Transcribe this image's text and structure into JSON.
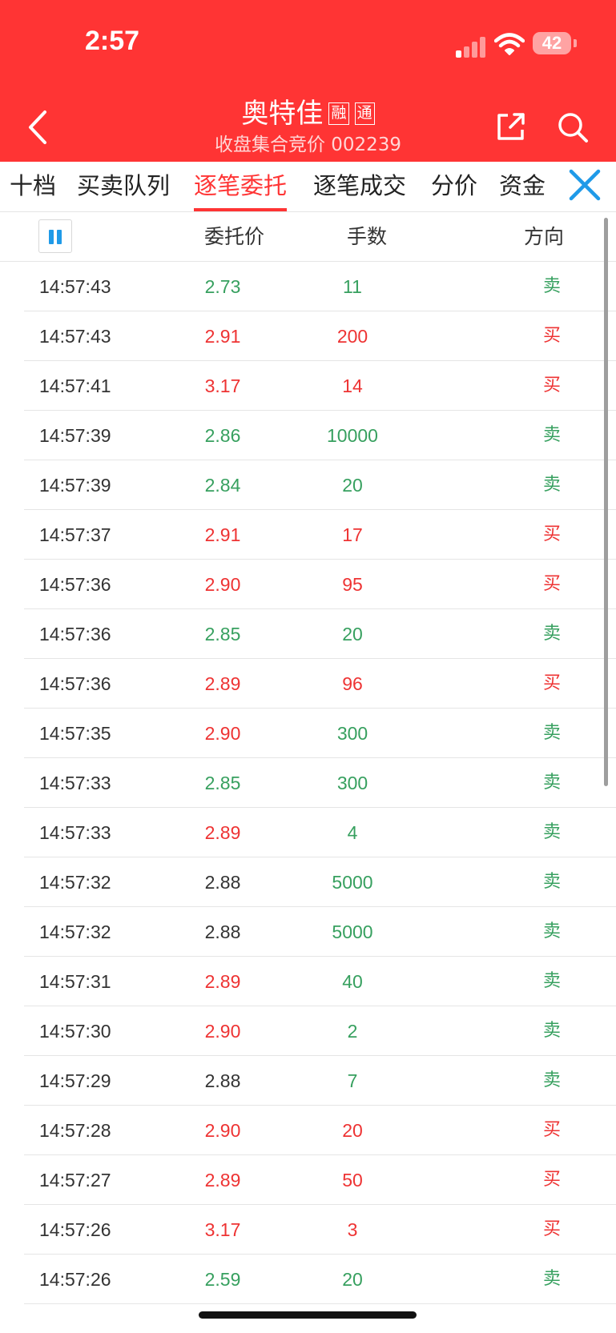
{
  "status_bar": {
    "time": "2:57",
    "battery": "42"
  },
  "header": {
    "title": "奥特佳",
    "tags": [
      "融",
      "通"
    ],
    "subtitle": "收盘集合竞价 002239"
  },
  "tabs": [
    {
      "label": "十档",
      "active": false
    },
    {
      "label": "买卖队列",
      "active": false
    },
    {
      "label": "逐笔委托",
      "active": true
    },
    {
      "label": "逐笔成交",
      "active": false
    },
    {
      "label": "分价",
      "active": false
    },
    {
      "label": "资金",
      "active": false
    }
  ],
  "columns": {
    "price": "委托价",
    "volume": "手数",
    "direction": "方向"
  },
  "colors": {
    "red": "#ee3333",
    "green": "#37a05f",
    "neutral": "#333333",
    "header_bg": "#ff3434"
  },
  "rows": [
    {
      "time": "14:57:43",
      "price": "2.73",
      "price_color": "green",
      "volume": "11",
      "volume_color": "green",
      "direction": "卖"
    },
    {
      "time": "14:57:43",
      "price": "2.91",
      "price_color": "red",
      "volume": "200",
      "volume_color": "red",
      "direction": "买"
    },
    {
      "time": "14:57:41",
      "price": "3.17",
      "price_color": "red",
      "volume": "14",
      "volume_color": "red",
      "direction": "买"
    },
    {
      "time": "14:57:39",
      "price": "2.86",
      "price_color": "green",
      "volume": "10000",
      "volume_color": "green",
      "direction": "卖"
    },
    {
      "time": "14:57:39",
      "price": "2.84",
      "price_color": "green",
      "volume": "20",
      "volume_color": "green",
      "direction": "卖"
    },
    {
      "time": "14:57:37",
      "price": "2.91",
      "price_color": "red",
      "volume": "17",
      "volume_color": "red",
      "direction": "买"
    },
    {
      "time": "14:57:36",
      "price": "2.90",
      "price_color": "red",
      "volume": "95",
      "volume_color": "red",
      "direction": "买"
    },
    {
      "time": "14:57:36",
      "price": "2.85",
      "price_color": "green",
      "volume": "20",
      "volume_color": "green",
      "direction": "卖"
    },
    {
      "time": "14:57:36",
      "price": "2.89",
      "price_color": "red",
      "volume": "96",
      "volume_color": "red",
      "direction": "买"
    },
    {
      "time": "14:57:35",
      "price": "2.90",
      "price_color": "red",
      "volume": "300",
      "volume_color": "green",
      "direction": "卖"
    },
    {
      "time": "14:57:33",
      "price": "2.85",
      "price_color": "green",
      "volume": "300",
      "volume_color": "green",
      "direction": "卖"
    },
    {
      "time": "14:57:33",
      "price": "2.89",
      "price_color": "red",
      "volume": "4",
      "volume_color": "green",
      "direction": "卖"
    },
    {
      "time": "14:57:32",
      "price": "2.88",
      "price_color": "gray",
      "volume": "5000",
      "volume_color": "green",
      "direction": "卖"
    },
    {
      "time": "14:57:32",
      "price": "2.88",
      "price_color": "gray",
      "volume": "5000",
      "volume_color": "green",
      "direction": "卖"
    },
    {
      "time": "14:57:31",
      "price": "2.89",
      "price_color": "red",
      "volume": "40",
      "volume_color": "green",
      "direction": "卖"
    },
    {
      "time": "14:57:30",
      "price": "2.90",
      "price_color": "red",
      "volume": "2",
      "volume_color": "green",
      "direction": "卖"
    },
    {
      "time": "14:57:29",
      "price": "2.88",
      "price_color": "gray",
      "volume": "7",
      "volume_color": "green",
      "direction": "卖"
    },
    {
      "time": "14:57:28",
      "price": "2.90",
      "price_color": "red",
      "volume": "20",
      "volume_color": "red",
      "direction": "买"
    },
    {
      "time": "14:57:27",
      "price": "2.89",
      "price_color": "red",
      "volume": "50",
      "volume_color": "red",
      "direction": "买"
    },
    {
      "time": "14:57:26",
      "price": "3.17",
      "price_color": "red",
      "volume": "3",
      "volume_color": "red",
      "direction": "买"
    },
    {
      "time": "14:57:26",
      "price": "2.59",
      "price_color": "green",
      "volume": "20",
      "volume_color": "green",
      "direction": "卖"
    }
  ]
}
